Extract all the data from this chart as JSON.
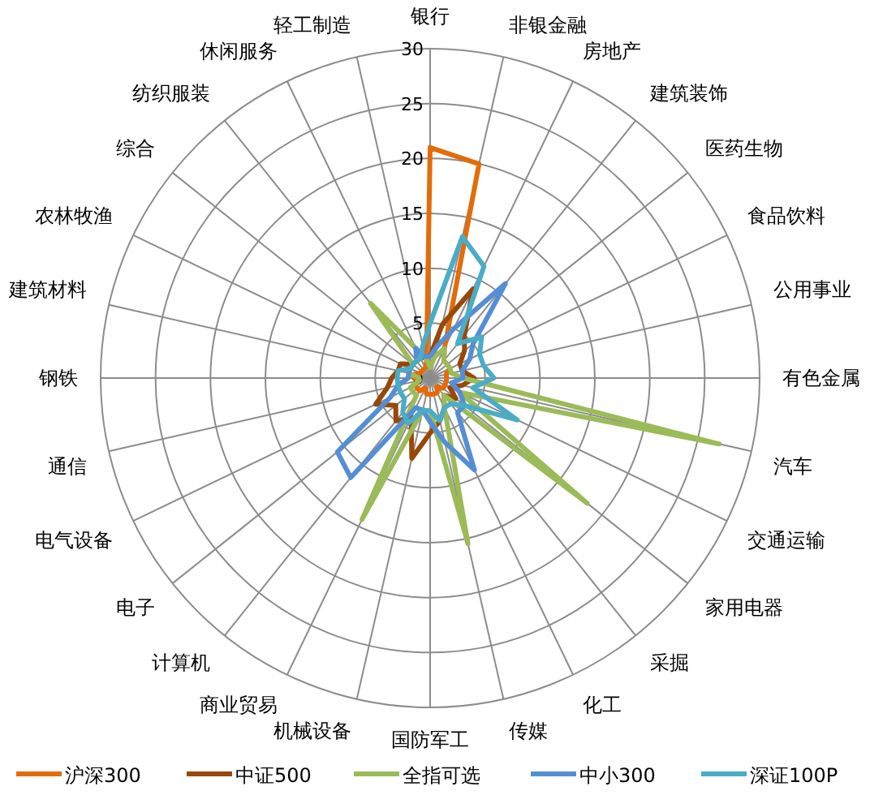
{
  "chart_data": {
    "type": "radar",
    "categories": [
      "银行",
      "非银金融",
      "房地产",
      "建筑装饰",
      "医药生物",
      "食品饮料",
      "公用事业",
      "有色金属",
      "汽车",
      "交通运输",
      "家用电器",
      "采掘",
      "化工",
      "传媒",
      "国防军工",
      "机械设备",
      "商业贸易",
      "计算机",
      "电子",
      "电气设备",
      "通信",
      "钢铁",
      "建筑材料",
      "农林牧渔",
      "综合",
      "纺织服装",
      "休闲服务",
      "轻工制造"
    ],
    "series": [
      {
        "name": "沪深300",
        "color": "#e36c09",
        "values": [
          21,
          20,
          3,
          2,
          2,
          2,
          1.5,
          1.5,
          1.5,
          1.5,
          1.5,
          1,
          1.5,
          1.5,
          1.5,
          1.5,
          1,
          1.5,
          1.5,
          1.5,
          1,
          1.5,
          1.5,
          1,
          1,
          1,
          1,
          1.5
        ]
      },
      {
        "name": "中证500",
        "color": "#984807",
        "values": [
          2,
          5,
          9,
          5,
          4,
          3,
          3,
          4,
          3,
          2,
          3,
          2,
          3,
          4,
          5,
          7.5,
          4,
          5,
          4,
          5.5,
          4,
          3.5,
          3,
          3,
          2,
          2,
          2,
          2
        ]
      },
      {
        "name": "全指可选",
        "color": "#9bbb59",
        "values": [
          1,
          2,
          3,
          2,
          2,
          2,
          2,
          3,
          27,
          3,
          18.3,
          2,
          3,
          15.5,
          3,
          3,
          14.3,
          2,
          2,
          2,
          1,
          1,
          2,
          2,
          2,
          8.7,
          3,
          2
        ]
      },
      {
        "name": "中小300",
        "color": "#558ed5",
        "values": [
          2,
          3,
          5,
          11,
          5,
          4,
          3,
          3,
          2,
          3,
          4,
          4,
          9.3,
          6,
          4,
          3,
          3,
          11.6,
          10.8,
          4,
          3,
          2,
          2,
          2,
          2,
          2,
          3,
          2
        ]
      },
      {
        "name": "深证100P",
        "color": "#4bacc6",
        "values": [
          5,
          13.2,
          11.3,
          4,
          6,
          5,
          5,
          5.8,
          4,
          8.8,
          4,
          3,
          3,
          4,
          3,
          3,
          4.6,
          4,
          3,
          3,
          3,
          3,
          3,
          2,
          2,
          2,
          2,
          3
        ]
      }
    ],
    "ylim": [
      0,
      30
    ],
    "yticks": [
      0,
      5,
      10,
      15,
      20,
      25,
      30
    ],
    "grid": true,
    "legend": "bottom",
    "marker": "none",
    "line_style": "solid"
  }
}
